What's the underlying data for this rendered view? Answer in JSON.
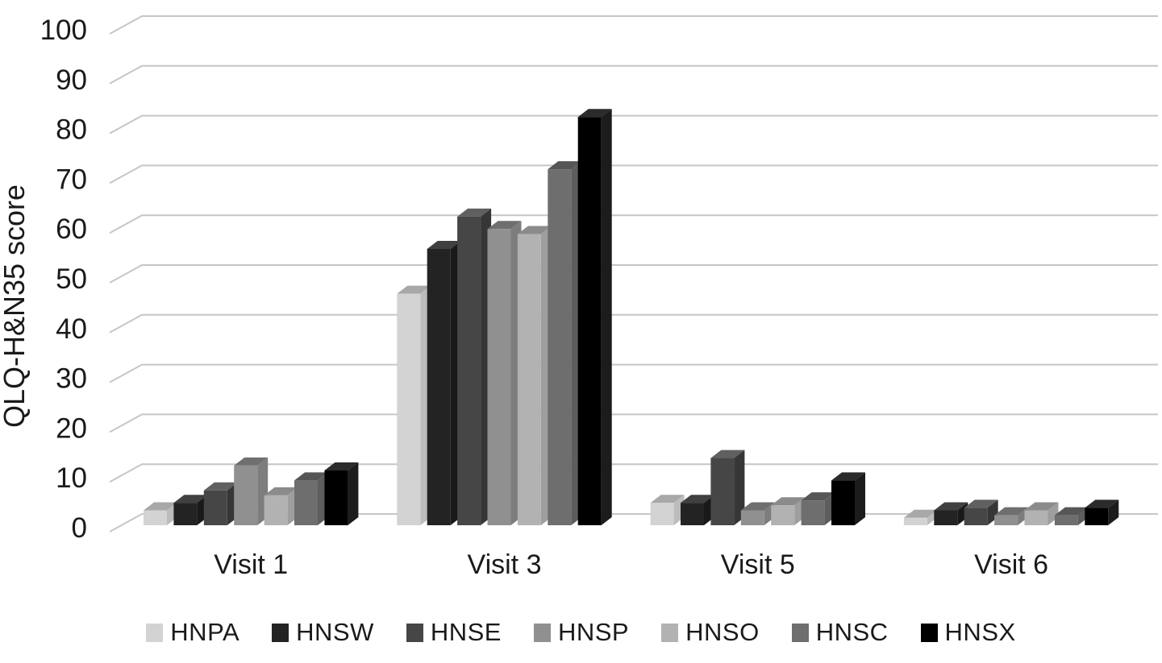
{
  "figure": {
    "background": "#ffffff",
    "text_color": "#1a1a1a",
    "gridline_color": "#c6c6c6"
  },
  "chart_data": {
    "type": "bar",
    "style": "3d-clustered-column",
    "title": "",
    "xlabel": "",
    "ylabel": "QLQ-H&N35 score",
    "ylim": [
      0,
      100
    ],
    "ytick_step": 10,
    "yticks": [
      0,
      10,
      20,
      30,
      40,
      50,
      60,
      70,
      80,
      90,
      100
    ],
    "grid": true,
    "legend_position": "bottom",
    "categories": [
      "Visit 1",
      "Visit 3",
      "Visit 5",
      "Visit 6"
    ],
    "series": [
      {
        "name": "HNPA",
        "color": "#d3d3d3",
        "top_color": "#a8a8a8",
        "side_color": "#bcbcbc",
        "values": [
          3,
          46.5,
          4.5,
          1.5
        ]
      },
      {
        "name": "HNSW",
        "color": "#232323",
        "top_color": "#404040",
        "side_color": "#191919",
        "values": [
          4.5,
          55.5,
          4.5,
          3
        ]
      },
      {
        "name": "HNSE",
        "color": "#464646",
        "top_color": "#606060",
        "side_color": "#363636",
        "values": [
          7,
          62,
          13.5,
          3.5
        ]
      },
      {
        "name": "HNSP",
        "color": "#909090",
        "top_color": "#6f6f6f",
        "side_color": "#7d7d7d",
        "values": [
          12,
          59.5,
          3,
          2
        ]
      },
      {
        "name": "HNSO",
        "color": "#b2b2b2",
        "top_color": "#8b8b8b",
        "side_color": "#9e9e9e",
        "values": [
          6,
          58.5,
          4,
          3
        ]
      },
      {
        "name": "HNSC",
        "color": "#6e6e6e",
        "top_color": "#565656",
        "side_color": "#5d5d5d",
        "values": [
          9,
          71.5,
          5,
          2
        ]
      },
      {
        "name": "HNSX",
        "color": "#000000",
        "top_color": "#2b2b2b",
        "side_color": "#1c1c1c",
        "values": [
          11,
          82,
          9,
          3.5
        ]
      }
    ]
  }
}
